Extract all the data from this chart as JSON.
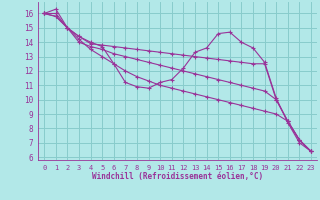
{
  "xlabel": "Windchill (Refroidissement éolien,°C)",
  "bg_color": "#b2e8e8",
  "line_color": "#993399",
  "grid_color": "#88cccc",
  "xlim": [
    -0.5,
    23.5
  ],
  "ylim": [
    5.8,
    16.8
  ],
  "yticks": [
    6,
    7,
    8,
    9,
    10,
    11,
    12,
    13,
    14,
    15,
    16
  ],
  "xticks": [
    0,
    1,
    2,
    3,
    4,
    5,
    6,
    7,
    8,
    9,
    10,
    11,
    12,
    13,
    14,
    15,
    16,
    17,
    18,
    19,
    20,
    21,
    22,
    23
  ],
  "lines": [
    {
      "x": [
        0,
        1,
        2,
        3,
        4,
        5,
        6,
        7,
        8,
        9,
        10,
        11,
        12,
        13,
        14,
        15,
        16,
        17,
        18,
        19,
        20,
        21,
        22,
        23
      ],
      "y": [
        16.0,
        16.3,
        15.0,
        14.4,
        14.0,
        13.7,
        12.5,
        11.2,
        10.9,
        10.8,
        11.2,
        11.4,
        12.2,
        13.3,
        13.6,
        14.6,
        14.7,
        14.0,
        13.6,
        12.6,
        10.1,
        8.4,
        7.0,
        6.4
      ]
    },
    {
      "x": [
        0,
        1,
        2,
        3,
        4,
        5,
        6,
        7,
        8,
        9,
        10,
        11,
        12,
        13,
        14,
        15,
        16,
        17,
        18,
        19,
        20,
        21,
        22,
        23
      ],
      "y": [
        16.0,
        16.0,
        15.0,
        14.0,
        13.7,
        13.5,
        13.2,
        13.0,
        12.8,
        12.6,
        12.4,
        12.2,
        12.0,
        11.8,
        11.6,
        11.4,
        11.2,
        11.0,
        10.8,
        10.6,
        10.0,
        8.5,
        7.2,
        6.4
      ]
    },
    {
      "x": [
        0,
        1,
        2,
        3,
        4,
        5,
        6,
        7,
        8,
        9,
        10,
        11,
        12,
        13,
        14,
        15,
        16,
        17,
        18,
        19,
        20,
        21,
        22,
        23
      ],
      "y": [
        16.0,
        15.8,
        15.0,
        14.2,
        13.5,
        13.0,
        12.5,
        12.0,
        11.6,
        11.3,
        11.0,
        10.8,
        10.6,
        10.4,
        10.2,
        10.0,
        9.8,
        9.6,
        9.4,
        9.2,
        9.0,
        8.5,
        7.2,
        6.4
      ]
    },
    {
      "x": [
        0,
        1,
        2,
        3,
        4,
        5,
        6,
        7,
        8,
        9,
        10,
        11,
        12,
        13,
        14,
        15,
        16,
        17,
        18,
        19,
        20,
        21,
        22,
        23
      ],
      "y": [
        16.0,
        15.8,
        15.0,
        14.4,
        13.9,
        13.8,
        13.7,
        13.6,
        13.5,
        13.4,
        13.3,
        13.2,
        13.1,
        13.0,
        12.9,
        12.8,
        12.7,
        12.6,
        12.5,
        12.5,
        10.0,
        8.5,
        7.2,
        6.4
      ]
    }
  ]
}
